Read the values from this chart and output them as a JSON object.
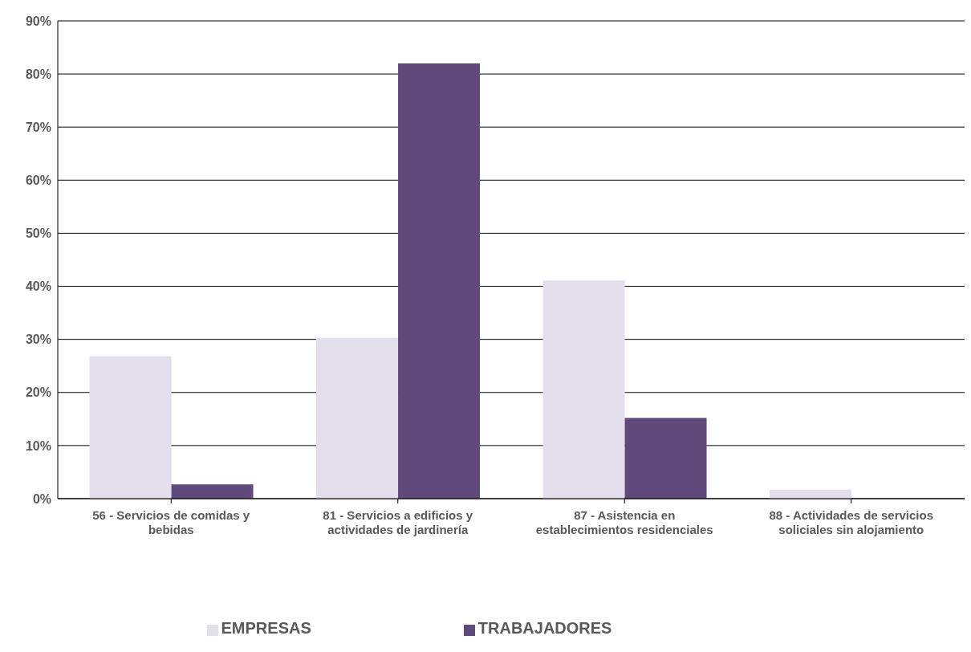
{
  "chart_data": {
    "type": "bar",
    "categories": [
      "56 - Servicios de comidas y bebidas",
      "81 - Servicios a edificios y actividades de jardinería",
      "87 - Asistencia en establecimientos residenciales",
      "88 - Actividades de servicios soliciales sin alojamiento"
    ],
    "series": [
      {
        "name": "EMPRESAS",
        "color": "#e4dfec",
        "values": [
          26.8,
          30.3,
          41.1,
          1.7
        ]
      },
      {
        "name": "TRABAJADORES",
        "color": "#604a7b",
        "values": [
          2.7,
          82.0,
          15.2,
          0
        ]
      }
    ],
    "ylim": [
      0,
      90
    ],
    "yticks": [
      {
        "value": 0,
        "label": "0%"
      },
      {
        "value": 10,
        "label": "10%"
      },
      {
        "value": 20,
        "label": "20%"
      },
      {
        "value": 30,
        "label": "30%"
      },
      {
        "value": 40,
        "label": "40%"
      },
      {
        "value": 50,
        "label": "50%"
      },
      {
        "value": 60,
        "label": "60%"
      },
      {
        "value": 70,
        "label": "70%"
      },
      {
        "value": 80,
        "label": "80%"
      },
      {
        "value": 90,
        "label": "90%"
      }
    ],
    "grid": "y",
    "legend": "bottom"
  }
}
